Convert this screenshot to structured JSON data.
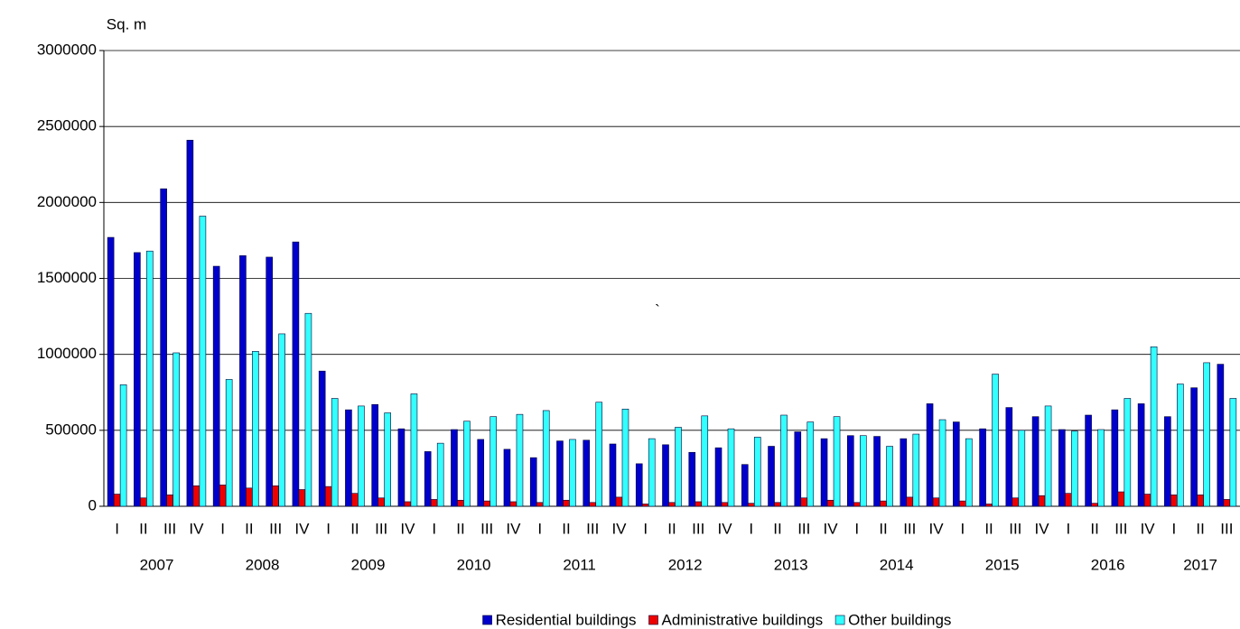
{
  "chart_data": {
    "type": "bar",
    "y_axis_label": "Sq. m",
    "annotation": "`",
    "categories": [
      "I",
      "II",
      "III",
      "IV",
      "I",
      "II",
      "III",
      "IV",
      "I",
      "II",
      "III",
      "IV",
      "I",
      "II",
      "III",
      "IV",
      "I",
      "II",
      "III",
      "IV",
      "I",
      "II",
      "III",
      "IV",
      "I",
      "II",
      "III",
      "IV",
      "I",
      "II",
      "III",
      "IV",
      "I",
      "II",
      "III",
      "IV",
      "I",
      "II",
      "III",
      "IV",
      "I",
      "II",
      "III"
    ],
    "years": [
      "2007",
      "2008",
      "2009",
      "2010",
      "2011",
      "2012",
      "2013",
      "2014",
      "2015",
      "2016",
      "2017"
    ],
    "series": [
      {
        "name": "Residential buildings",
        "color": "#0000cc",
        "values": [
          1770000,
          1670000,
          2090000,
          2410000,
          1580000,
          1650000,
          1640000,
          1740000,
          890000,
          635000,
          670000,
          510000,
          360000,
          505000,
          440000,
          375000,
          320000,
          430000,
          435000,
          410000,
          280000,
          405000,
          355000,
          385000,
          275000,
          395000,
          490000,
          445000,
          465000,
          460000,
          445000,
          675000,
          555000,
          510000,
          650000,
          590000,
          505000,
          600000,
          635000,
          675000,
          590000,
          780000,
          935000
        ]
      },
      {
        "name": "Administrative buildings",
        "color": "#ee0000",
        "values": [
          80000,
          55000,
          75000,
          135000,
          140000,
          120000,
          135000,
          110000,
          130000,
          85000,
          55000,
          30000,
          45000,
          40000,
          35000,
          30000,
          25000,
          40000,
          25000,
          60000,
          15000,
          25000,
          30000,
          25000,
          20000,
          25000,
          55000,
          40000,
          25000,
          35000,
          60000,
          55000,
          35000,
          15000,
          55000,
          70000,
          85000,
          20000,
          95000,
          80000,
          75000,
          75000,
          45000
        ]
      },
      {
        "name": "Other buildings",
        "color": "#33ffff",
        "values": [
          800000,
          1680000,
          1010000,
          1910000,
          835000,
          1020000,
          1135000,
          1270000,
          710000,
          660000,
          615000,
          740000,
          415000,
          560000,
          590000,
          605000,
          630000,
          440000,
          685000,
          640000,
          445000,
          520000,
          595000,
          510000,
          455000,
          600000,
          555000,
          590000,
          465000,
          395000,
          475000,
          570000,
          445000,
          870000,
          500000,
          660000,
          495000,
          505000,
          710000,
          1050000,
          805000,
          945000,
          710000
        ]
      }
    ],
    "ylim": [
      0,
      3000000
    ],
    "yticks": [
      0,
      500000,
      1000000,
      1500000,
      2000000,
      2500000,
      3000000
    ],
    "grid": true,
    "legend": "bottom"
  }
}
